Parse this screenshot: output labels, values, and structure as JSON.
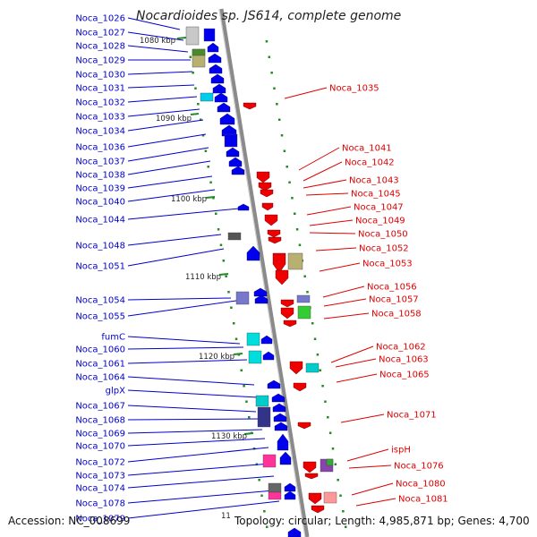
{
  "title": "Nocardioides sp. JS614, complete genome",
  "footer": {
    "accession": "Accession: NC_008699",
    "summary": "Topology: circular; Length: 4,985,871 bp; Genes: 4,700"
  },
  "colors": {
    "forward": "#0000ee",
    "reverse": "#ee0000",
    "backbone": "#8a8a8a",
    "ticks": "#228b22"
  },
  "kbp_labels": [
    "1080 kbp",
    "1090 kbp",
    "1100 kbp",
    "1110 kbp",
    "1120 kbp",
    "1130 kbp",
    "11"
  ],
  "left_labels": [
    "Noca_1026",
    "Noca_1027",
    "Noca_1028",
    "Noca_1029",
    "Noca_1030",
    "Noca_1031",
    "Noca_1032",
    "Noca_1033",
    "Noca_1034",
    "Noca_1036",
    "Noca_1037",
    "Noca_1038",
    "Noca_1039",
    "Noca_1040",
    "Noca_1044",
    "Noca_1048",
    "Noca_1051",
    "Noca_1054",
    "Noca_1055",
    "fumC",
    "Noca_1060",
    "Noca_1061",
    "Noca_1064",
    "glpX",
    "Noca_1067",
    "Noca_1068",
    "Noca_1069",
    "Noca_1070",
    "Noca_1072",
    "Noca_1073",
    "Noca_1074",
    "Noca_1078",
    "Noca_1079"
  ],
  "right_labels": [
    "Noca_1035",
    "Noca_1041",
    "Noca_1042",
    "Noca_1043",
    "Noca_1045",
    "Noca_1047",
    "Noca_1049",
    "Noca_1050",
    "Noca_1052",
    "Noca_1053",
    "Noca_1056",
    "Noca_1057",
    "Noca_1058",
    "Noca_1062",
    "Noca_1063",
    "Noca_1065",
    "Noca_1071",
    "ispH",
    "Noca_1076",
    "Noca_1080",
    "Noca_1081"
  ]
}
